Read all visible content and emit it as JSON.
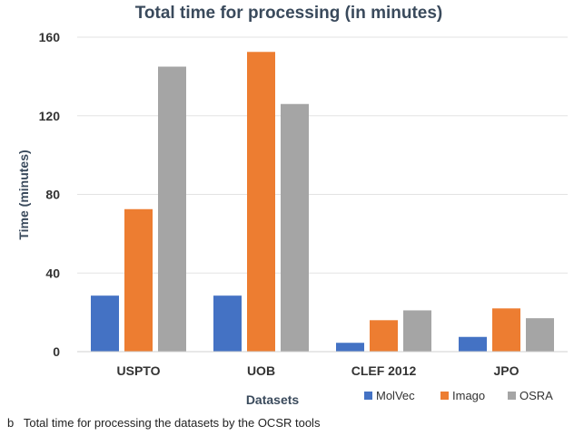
{
  "chart_data": {
    "type": "bar",
    "title": "Total time for processing (in minutes)",
    "xlabel": "Datasets",
    "ylabel": "Time (minutes)",
    "ylim": [
      0,
      160
    ],
    "yticks": [
      0,
      40,
      80,
      120,
      160
    ],
    "categories": [
      "USPTO",
      "UOB",
      "CLEF 2012",
      "JPO"
    ],
    "series": [
      {
        "name": "MolVec",
        "values": [
          28.5,
          28.5,
          4.5,
          7.5
        ],
        "color": "#4472c4"
      },
      {
        "name": "Imago",
        "values": [
          72.5,
          152.5,
          16,
          22
        ],
        "color": "#ed7d31"
      },
      {
        "name": "OSRA",
        "values": [
          145,
          126,
          21,
          17
        ],
        "color": "#a5a5a5"
      }
    ],
    "grid": true,
    "legend_position": "bottom-right"
  },
  "caption": {
    "label": "b",
    "text": "Total time for processing the datasets by the OCSR tools"
  }
}
